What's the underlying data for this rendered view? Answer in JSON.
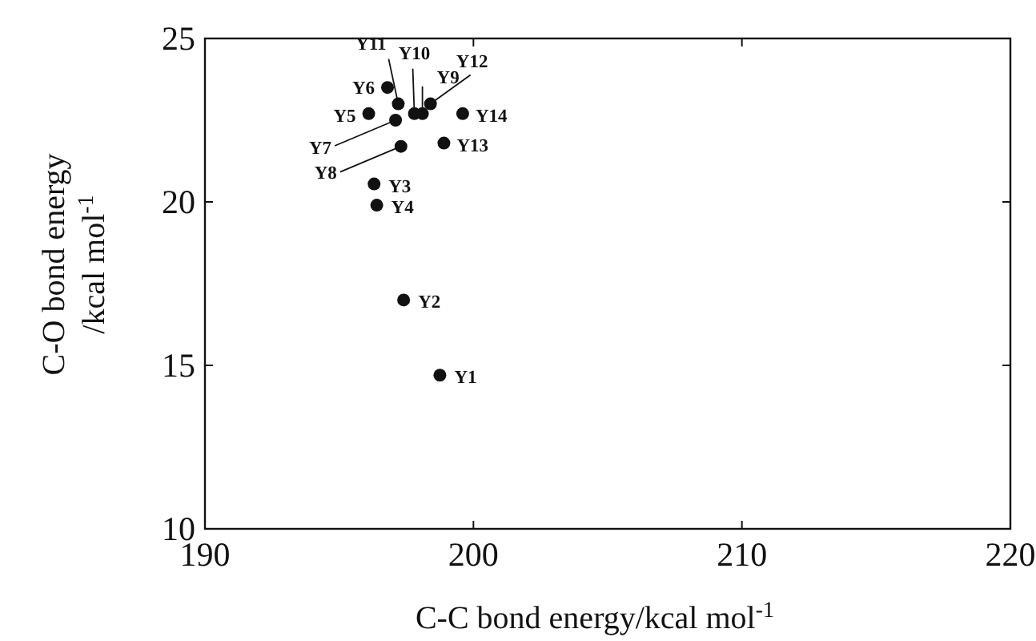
{
  "chart_data": {
    "type": "scatter",
    "xlabel": "C-C bond energy/kcal mol$^{-1}$",
    "ylabel": "C-O bond energy\n/kcal mol$^{-1}$",
    "xlim": [
      190,
      220
    ],
    "xticks": [
      190,
      200,
      210,
      220
    ],
    "ylim": [
      10,
      25
    ],
    "yticks": [
      10,
      15,
      20,
      25
    ],
    "grid": false,
    "marker": "circle",
    "series": [
      {
        "color": "#111111",
        "x": [
          198.75,
          197.4,
          196.3,
          196.4,
          196.1,
          196.8,
          197.1,
          197.3,
          198.1,
          197.8,
          197.2,
          198.4,
          198.9,
          199.6
        ],
        "values": [
          14.7,
          17.0,
          20.55,
          19.9,
          22.7,
          23.5,
          22.5,
          21.7,
          22.7,
          22.7,
          23.0,
          23.0,
          21.8,
          22.7
        ]
      }
    ],
    "annotations": [
      {
        "text": "Y1",
        "x": 198.75,
        "y": 14.7
      },
      {
        "text": "Y2",
        "x": 197.4,
        "y": 17.0
      },
      {
        "text": "Y3",
        "x": 196.3,
        "y": 20.55
      },
      {
        "text": "Y4",
        "x": 196.4,
        "y": 19.9
      },
      {
        "text": "Y5",
        "x": 196.1,
        "y": 22.7
      },
      {
        "text": "Y6",
        "x": 196.8,
        "y": 23.5
      },
      {
        "text": "Y7",
        "x": 197.1,
        "y": 22.5
      },
      {
        "text": "Y8",
        "x": 197.3,
        "y": 21.7
      },
      {
        "text": "Y9",
        "x": 198.1,
        "y": 22.7
      },
      {
        "text": "Y10",
        "x": 197.8,
        "y": 22.7
      },
      {
        "text": "Y11",
        "x": 197.2,
        "y": 23.0
      },
      {
        "text": "Y12",
        "x": 198.4,
        "y": 23.0
      },
      {
        "text": "Y13",
        "x": 198.9,
        "y": 21.8
      },
      {
        "text": "Y14",
        "x": 199.6,
        "y": 22.7
      }
    ]
  }
}
